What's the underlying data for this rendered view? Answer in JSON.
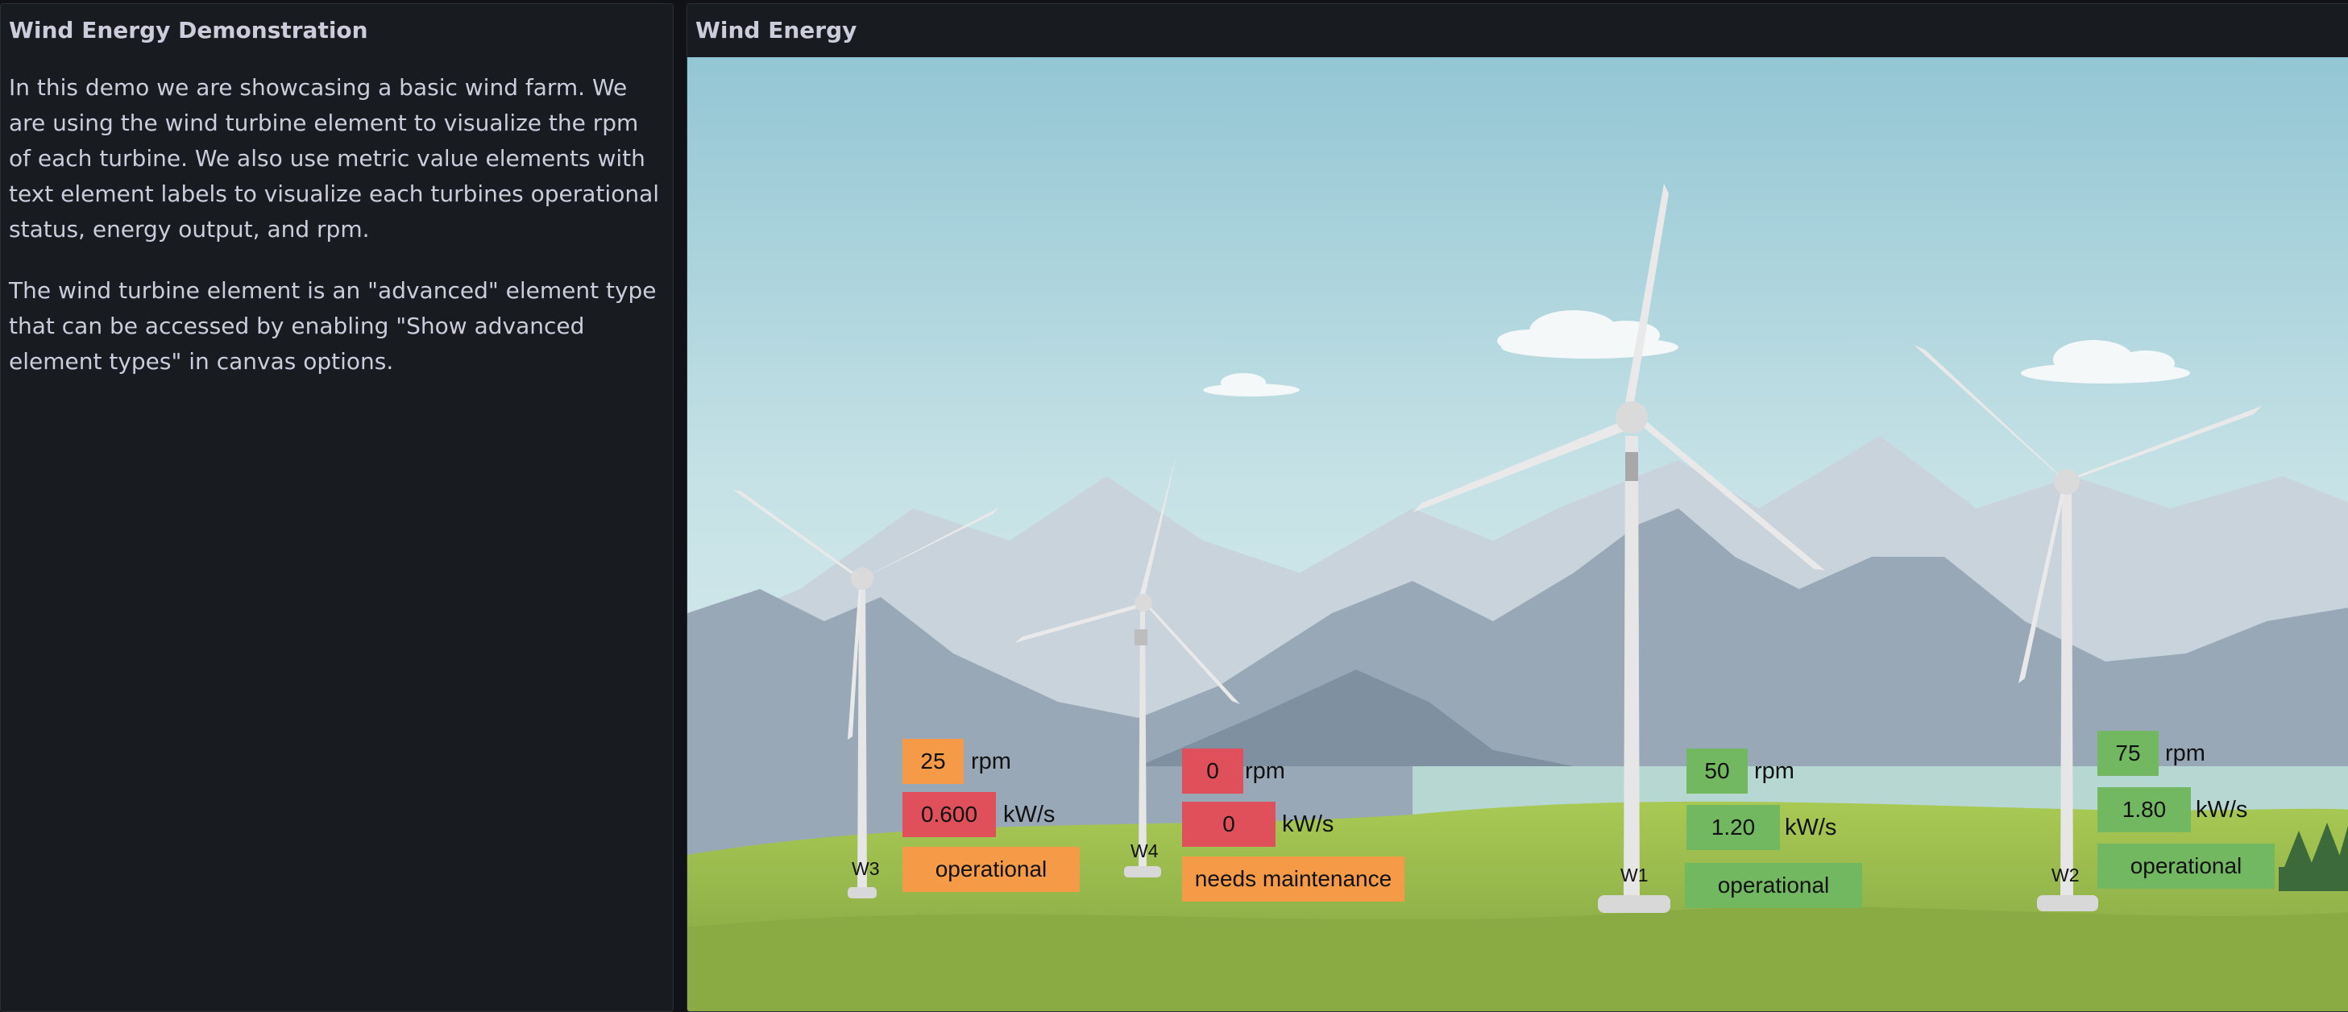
{
  "text_panel": {
    "title": "Wind Energy Demonstration",
    "paragraph1": "In this demo we are showcasing a basic wind farm. We are using the wind turbine element to visualize the rpm of each turbine. We also use metric value elements with text element labels to visualize each turbines operational status, energy output, and rpm.",
    "paragraph2": "The wind turbine element is an \"advanced\" element type that can be accessed by enabling \"Show advanced element types\" in canvas options."
  },
  "canvas_panel": {
    "title": "Wind Energy",
    "units": {
      "rpm": "rpm",
      "power": "kW/s"
    },
    "turbines": [
      {
        "label": "W3",
        "rpm": "25",
        "power": "0.600",
        "status": "operational",
        "rpm_color": "#f59a46",
        "power_color": "#e0505a",
        "status_color": "#f59a46"
      },
      {
        "label": "W4",
        "rpm": "0",
        "power": "0",
        "status": "needs maintenance",
        "rpm_color": "#e0505a",
        "power_color": "#e0505a",
        "status_color": "#f59a46"
      },
      {
        "label": "W1",
        "rpm": "50",
        "power": "1.20",
        "status": "operational",
        "rpm_color": "#72b860",
        "power_color": "#72b860",
        "status_color": "#72b860"
      },
      {
        "label": "W2",
        "rpm": "75",
        "power": "1.80",
        "status": "operational",
        "rpm_color": "#72b860",
        "power_color": "#72b860",
        "status_color": "#72b860"
      }
    ]
  }
}
